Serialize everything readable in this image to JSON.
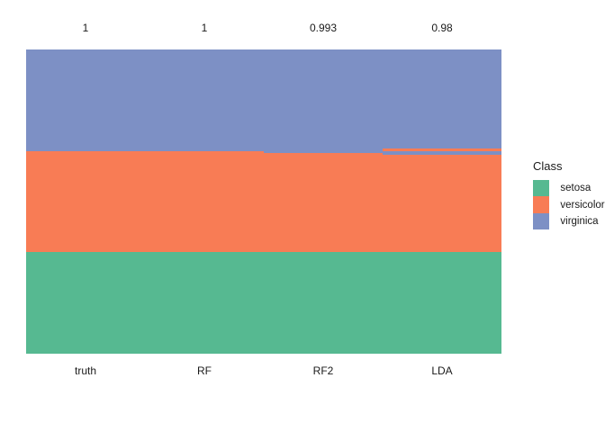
{
  "chart_data": {
    "type": "bar",
    "variant": "stacked-class-membership-columns",
    "title": "",
    "total_samples_per_column": 150,
    "categories": [
      "truth",
      "RF",
      "RF2",
      "LDA"
    ],
    "accuracy_labels": [
      "1",
      "1",
      "0.993",
      "0.98"
    ],
    "class_colors": {
      "setosa": "#56B991",
      "versicolor": "#F87C55",
      "virginica": "#7D90C5"
    },
    "columns": [
      {
        "label": "truth",
        "accuracy": "1",
        "segments_top_to_bottom": [
          {
            "class": "virginica",
            "count": 50
          },
          {
            "class": "versicolor",
            "count": 50
          },
          {
            "class": "setosa",
            "count": 50
          }
        ]
      },
      {
        "label": "RF",
        "accuracy": "1",
        "segments_top_to_bottom": [
          {
            "class": "virginica",
            "count": 50
          },
          {
            "class": "versicolor",
            "count": 50
          },
          {
            "class": "setosa",
            "count": 50
          }
        ]
      },
      {
        "label": "RF2",
        "accuracy": "0.993",
        "segments_top_to_bottom": [
          {
            "class": "virginica",
            "count": 51
          },
          {
            "class": "versicolor",
            "count": 49
          },
          {
            "class": "setosa",
            "count": 50
          }
        ]
      },
      {
        "label": "LDA",
        "accuracy": "0.98",
        "segments_top_to_bottom": [
          {
            "class": "virginica",
            "count": 49
          },
          {
            "class": "versicolor",
            "count": 1
          },
          {
            "class": "virginica",
            "count": 2
          },
          {
            "class": "versicolor",
            "count": 48
          },
          {
            "class": "setosa",
            "count": 50
          }
        ]
      }
    ],
    "legend": {
      "title": "Class",
      "position": "right",
      "entries": [
        {
          "label": "setosa",
          "color": "#56B991"
        },
        {
          "label": "versicolor",
          "color": "#F87C55"
        },
        {
          "label": "virginica",
          "color": "#7D90C5"
        }
      ]
    },
    "axes": {
      "x_tick_labels": [
        "truth",
        "RF",
        "RF2",
        "LDA"
      ],
      "y_axis_visible": false,
      "grid": false
    },
    "text_color": "#1a1a1a",
    "background_color": "#FFFFFF"
  }
}
